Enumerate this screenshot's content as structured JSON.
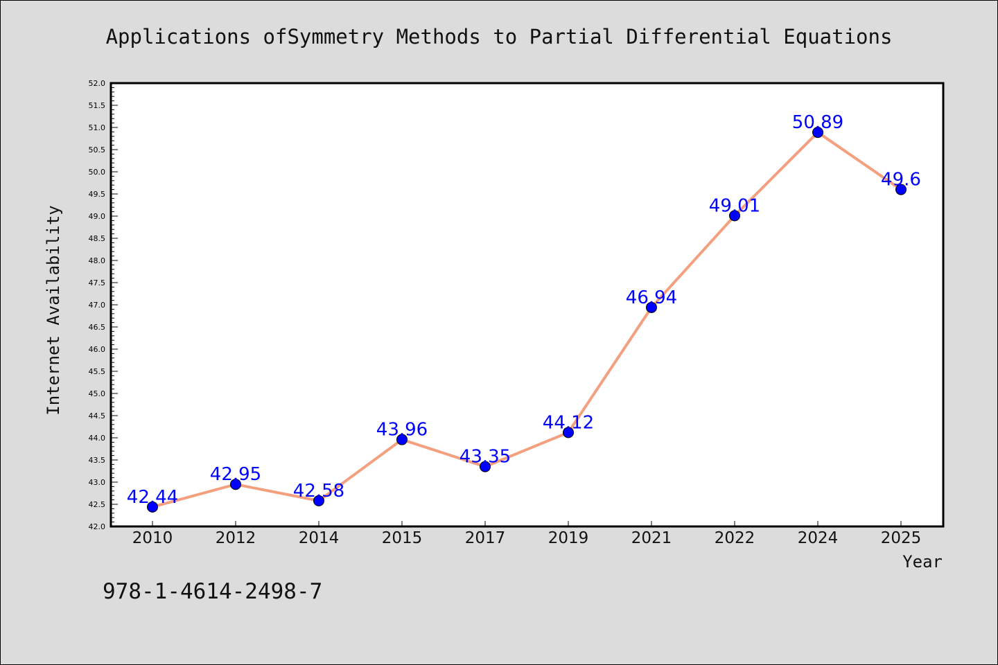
{
  "chart_data": {
    "type": "line",
    "title": "Applications ofSymmetry Methods to Partial Differential Equations",
    "xlabel": "Year",
    "ylabel": "Internet Availability",
    "categories": [
      "2010",
      "2012",
      "2014",
      "2015",
      "2017",
      "2019",
      "2021",
      "2022",
      "2024",
      "2025"
    ],
    "series": [
      {
        "values": [
          42.44,
          42.95,
          42.58,
          43.96,
          43.35,
          44.12,
          46.94,
          49.01,
          50.89,
          49.6
        ],
        "labels": [
          "42.44",
          "42.95",
          "42.58",
          "43.96",
          "43.35",
          "44.12",
          "46.94",
          "49.01",
          "50.89",
          "49.6"
        ]
      }
    ],
    "ylim": [
      42.0,
      52.0
    ],
    "yticks": [
      "42.0",
      "42.5",
      "43.0",
      "43.5",
      "44.0",
      "44.5",
      "45.0",
      "45.5",
      "46.0",
      "46.5",
      "47.0",
      "47.5",
      "48.0",
      "48.5",
      "49.0",
      "49.5",
      "50.0",
      "50.5",
      "51.0",
      "51.5",
      "52.0"
    ],
    "grid": false,
    "legend": "none"
  },
  "footnote": "978-1-4614-2498-7",
  "colors": {
    "background": "#dcdcdc",
    "plot_area": "#ffffff",
    "line": "#f4a07e",
    "marker": "#0000ff",
    "data_label": "#0000ff"
  }
}
